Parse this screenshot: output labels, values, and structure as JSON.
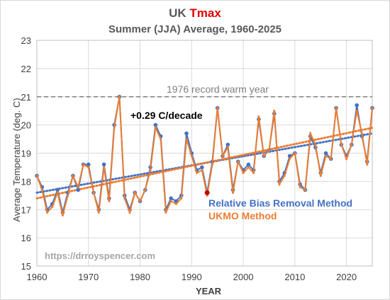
{
  "chart_data": {
    "type": "line",
    "title_prefix": "UK ",
    "title_highlight": "Tmax",
    "title_highlight_color": "#e00000",
    "subtitle": "Summer (JJA) Average, 1960-2025",
    "xlabel": "YEAR",
    "ylabel": "Average Temperature (deg. C)",
    "xlim": [
      1960,
      2025
    ],
    "ylim": [
      15,
      23
    ],
    "xticks": [
      1960,
      1970,
      1980,
      1990,
      2000,
      2010,
      2020
    ],
    "yticks": [
      15,
      16,
      17,
      18,
      19,
      20,
      21,
      22,
      23
    ],
    "grid": true,
    "x": [
      1960,
      1961,
      1962,
      1963,
      1964,
      1965,
      1966,
      1967,
      1968,
      1969,
      1970,
      1971,
      1972,
      1973,
      1974,
      1975,
      1976,
      1977,
      1978,
      1979,
      1980,
      1981,
      1982,
      1983,
      1984,
      1985,
      1986,
      1987,
      1988,
      1989,
      1990,
      1991,
      1992,
      1993,
      1994,
      1995,
      1996,
      1997,
      1998,
      1999,
      2000,
      2001,
      2002,
      2003,
      2004,
      2005,
      2006,
      2007,
      2008,
      2009,
      2010,
      2011,
      2012,
      2013,
      2014,
      2015,
      2016,
      2017,
      2018,
      2019,
      2020,
      2021,
      2022,
      2023,
      2024,
      2025
    ],
    "series": [
      {
        "name": "Relative Bias Removal Method",
        "color": "#4472c4",
        "values": [
          18.2,
          17.8,
          17.0,
          17.2,
          17.7,
          16.9,
          17.6,
          18.2,
          17.7,
          18.6,
          18.6,
          17.6,
          17.0,
          18.6,
          17.4,
          20.0,
          21.0,
          17.5,
          17.0,
          17.6,
          17.3,
          17.7,
          18.5,
          20.0,
          19.6,
          17.0,
          17.4,
          17.3,
          17.5,
          19.7,
          19.0,
          18.4,
          18.5,
          17.6,
          18.7,
          20.6,
          18.9,
          19.3,
          17.7,
          18.7,
          18.4,
          18.6,
          18.4,
          20.2,
          18.9,
          19.1,
          20.4,
          18.0,
          18.3,
          18.9,
          19.0,
          17.9,
          17.7,
          19.6,
          19.2,
          18.3,
          19.0,
          18.8,
          20.6,
          19.3,
          18.9,
          19.3,
          20.7,
          19.6,
          18.7,
          20.6
        ]
      },
      {
        "name": "UKMO Method",
        "color": "#ed7d31",
        "values": [
          18.2,
          17.7,
          16.9,
          17.1,
          17.6,
          16.8,
          17.5,
          18.2,
          17.8,
          18.6,
          18.5,
          17.6,
          16.9,
          18.5,
          17.3,
          19.9,
          21.0,
          17.4,
          16.9,
          17.6,
          17.3,
          17.7,
          18.4,
          19.9,
          19.5,
          16.9,
          17.3,
          17.2,
          17.4,
          19.5,
          18.9,
          18.3,
          18.4,
          17.5,
          18.6,
          20.6,
          18.9,
          19.2,
          17.6,
          18.7,
          18.3,
          18.5,
          18.3,
          20.3,
          18.9,
          19.1,
          20.5,
          17.9,
          18.2,
          18.8,
          19.0,
          17.8,
          17.7,
          19.7,
          19.3,
          18.2,
          18.9,
          18.8,
          20.6,
          19.3,
          18.8,
          19.3,
          20.5,
          19.7,
          18.6,
          20.6
        ]
      }
    ],
    "trendlines": [
      {
        "series": "Relative Bias Removal Method",
        "color": "#4472c4",
        "start": [
          1960,
          17.6
        ],
        "end": [
          2025,
          19.7
        ]
      },
      {
        "series": "UKMO Method",
        "color": "#ed7d31",
        "start": [
          1960,
          17.4
        ],
        "end": [
          2025,
          19.9
        ]
      }
    ],
    "highlighted_point": {
      "x": 1993,
      "y": 17.6,
      "color": "#c00000"
    },
    "reference_line": {
      "y": 21.0,
      "label": "1976 record warm year",
      "color": "#7f7f7f"
    },
    "trend_annotation": "+0.29 C/decade",
    "legend_labels": [
      "Relative Bias Removal Method",
      "UKMO Method"
    ],
    "legend_placement": "bottom-right",
    "watermark": "https://drroyspencer.com"
  }
}
